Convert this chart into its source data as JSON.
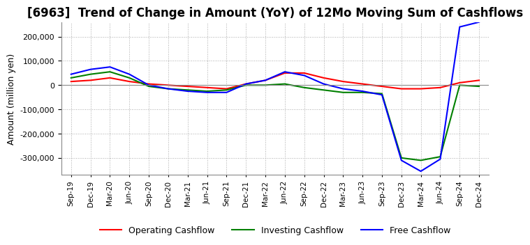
{
  "title": "[6963]  Trend of Change in Amount (YoY) of 12Mo Moving Sum of Cashflows",
  "ylabel": "Amount (million yen)",
  "background_color": "#ffffff",
  "grid_color": "#aaaaaa",
  "title_fontsize": 12,
  "x_labels": [
    "Sep-19",
    "Dec-19",
    "Mar-20",
    "Jun-20",
    "Sep-20",
    "Dec-20",
    "Mar-21",
    "Jun-21",
    "Sep-21",
    "Dec-21",
    "Mar-22",
    "Jun-22",
    "Sep-22",
    "Dec-22",
    "Mar-23",
    "Jun-23",
    "Sep-23",
    "Dec-23",
    "Mar-24",
    "Jun-24",
    "Sep-24",
    "Dec-24"
  ],
  "operating": [
    15000,
    20000,
    30000,
    15000,
    5000,
    0,
    -5000,
    -10000,
    -15000,
    5000,
    20000,
    50000,
    50000,
    30000,
    15000,
    5000,
    -5000,
    -15000,
    -15000,
    -10000,
    10000,
    20000
  ],
  "investing": [
    30000,
    45000,
    55000,
    30000,
    -5000,
    -15000,
    -20000,
    -25000,
    -20000,
    0,
    0,
    5000,
    -10000,
    -20000,
    -30000,
    -30000,
    -35000,
    -300000,
    -310000,
    -295000,
    0,
    -5000
  ],
  "free": [
    45000,
    65000,
    75000,
    45000,
    0,
    -15000,
    -25000,
    -30000,
    -30000,
    5000,
    20000,
    55000,
    40000,
    5000,
    -15000,
    -25000,
    -40000,
    -310000,
    -355000,
    -305000,
    240000,
    260000
  ],
  "ylim": [
    -370000,
    260000
  ],
  "yticks": [
    -300000,
    -200000,
    -100000,
    0,
    100000,
    200000
  ],
  "line_colors": {
    "operating": "#ff0000",
    "investing": "#008000",
    "free": "#0000ff"
  },
  "legend_labels": {
    "operating": "Operating Cashflow",
    "investing": "Investing Cashflow",
    "free": "Free Cashflow"
  }
}
